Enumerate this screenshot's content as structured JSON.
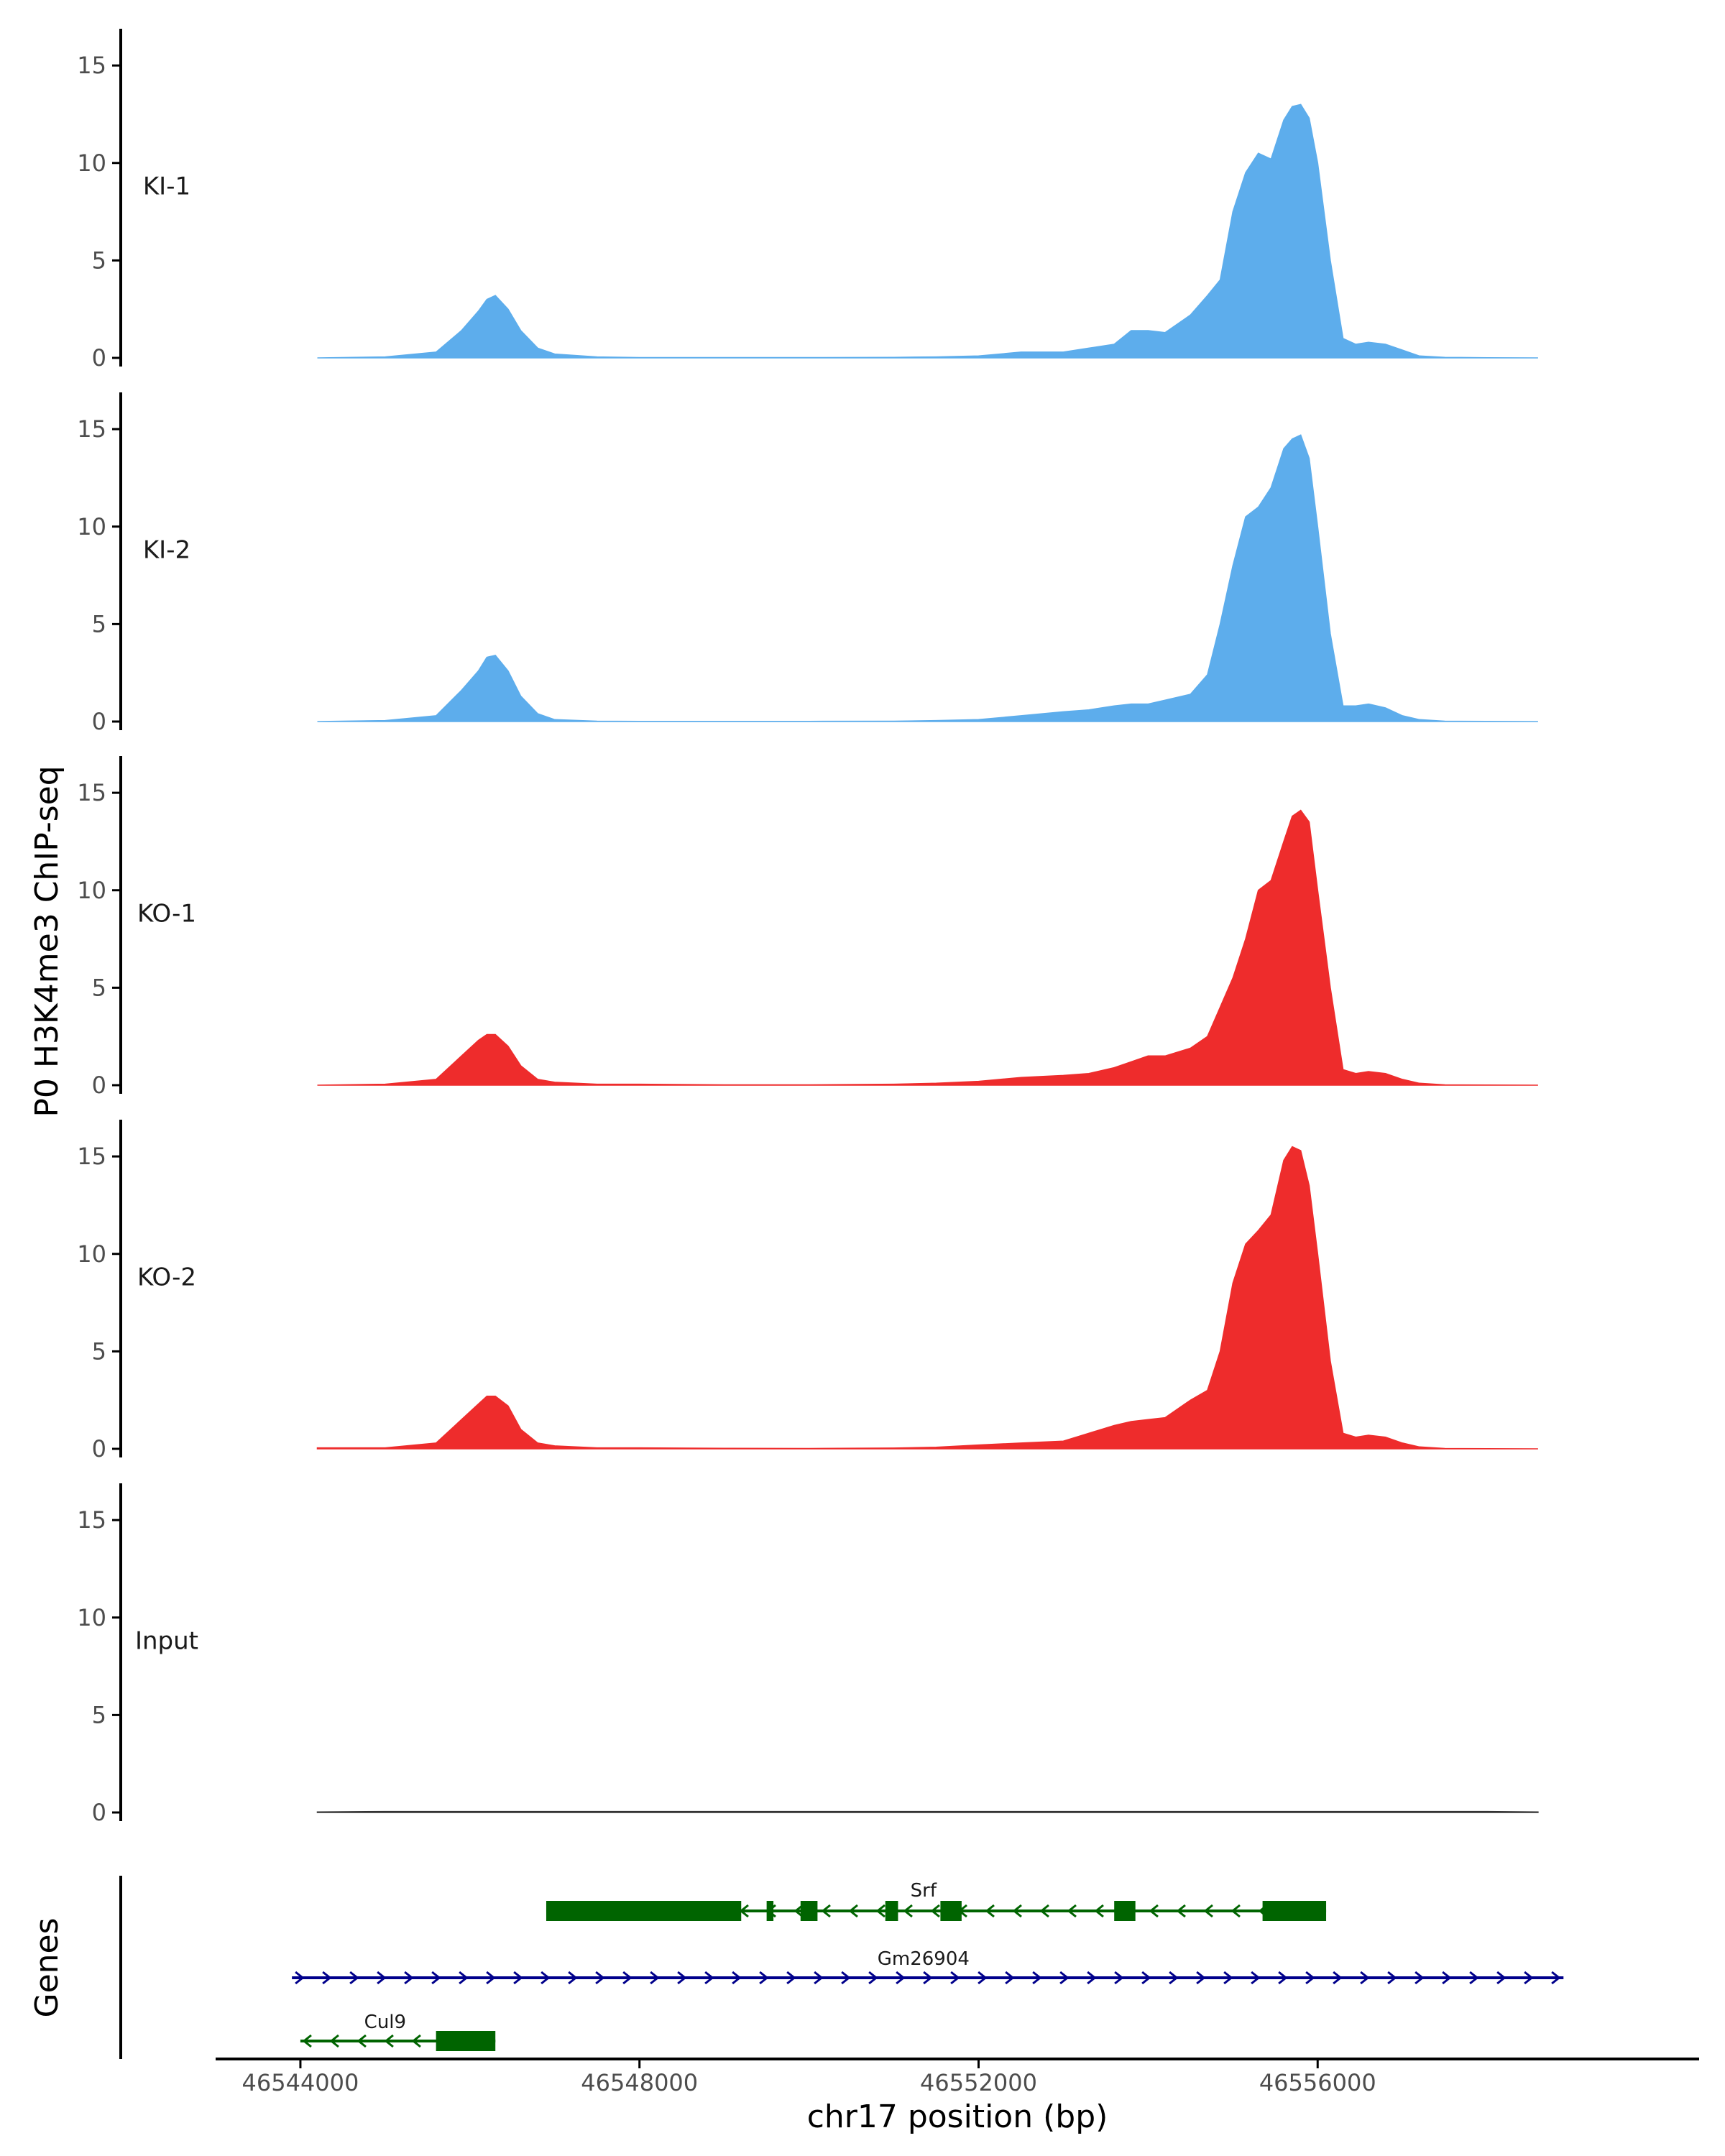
{
  "chart_data": {
    "type": "area",
    "ylabel": "P0 H3K4me3 ChIP-seq",
    "xlabel": "chr17 position (bp)",
    "xlim": [
      46543000,
      46560500
    ],
    "ylim": [
      0,
      16
    ],
    "y_ticks": [
      0,
      5,
      10,
      15
    ],
    "y_tick_labels": [
      "0",
      "5",
      "10",
      "15"
    ],
    "x_ticks": [
      46544000,
      46548000,
      46552000,
      46556000
    ],
    "x_tick_labels": [
      "46544000",
      "46548000",
      "46552000",
      "46556000"
    ],
    "genes_title": "Genes",
    "tracks": [
      {
        "name": "KI-1",
        "color": "#5DADEC",
        "x": [
          46544200,
          46545000,
          46545600,
          46545900,
          46546100,
          46546200,
          46546300,
          46546450,
          46546600,
          46546800,
          46547000,
          46547500,
          46548000,
          46549000,
          46550000,
          46551000,
          46551500,
          46552000,
          46552500,
          46553000,
          46553300,
          46553600,
          46553800,
          46554000,
          46554200,
          46554500,
          46554700,
          46554850,
          46555000,
          46555150,
          46555300,
          46555450,
          46555600,
          46555700,
          46555800,
          46555900,
          46556000,
          46556150,
          46556300,
          46556450,
          46556600,
          46556800,
          46557000,
          46557200,
          46557500,
          46558000,
          46558600
        ],
        "values": [
          0,
          0.05,
          0.3,
          1.4,
          2.4,
          3.0,
          3.2,
          2.5,
          1.4,
          0.5,
          0.2,
          0.05,
          0.02,
          0.02,
          0.02,
          0.03,
          0.05,
          0.1,
          0.3,
          0.3,
          0.5,
          0.7,
          1.4,
          1.4,
          1.3,
          2.2,
          3.2,
          4.0,
          7.5,
          9.5,
          10.5,
          10.2,
          12.2,
          12.9,
          13.0,
          12.3,
          10.0,
          5.0,
          1.0,
          0.7,
          0.8,
          0.7,
          0.4,
          0.1,
          0.03,
          0.01,
          0
        ]
      },
      {
        "name": "KI-2",
        "color": "#5DADEC",
        "x": [
          46544200,
          46545000,
          46545600,
          46545900,
          46546100,
          46546200,
          46546300,
          46546450,
          46546600,
          46546800,
          46547000,
          46547500,
          46548000,
          46549000,
          46550000,
          46551000,
          46551500,
          46552000,
          46552500,
          46553000,
          46553300,
          46553600,
          46553800,
          46554000,
          46554200,
          46554500,
          46554700,
          46554850,
          46555000,
          46555150,
          46555300,
          46555450,
          46555600,
          46555700,
          46555800,
          46555900,
          46556000,
          46556150,
          46556300,
          46556450,
          46556600,
          46556800,
          46557000,
          46557200,
          46557500,
          46558000,
          46558600
        ],
        "values": [
          0,
          0.05,
          0.3,
          1.6,
          2.6,
          3.3,
          3.4,
          2.6,
          1.3,
          0.4,
          0.1,
          0.02,
          0.01,
          0.01,
          0.01,
          0.02,
          0.05,
          0.1,
          0.3,
          0.5,
          0.6,
          0.8,
          0.9,
          0.9,
          1.1,
          1.4,
          2.4,
          5.0,
          8.0,
          10.5,
          11.0,
          12.0,
          14.0,
          14.5,
          14.7,
          13.5,
          10.0,
          4.5,
          0.8,
          0.8,
          0.9,
          0.7,
          0.3,
          0.1,
          0.02,
          0.01,
          0
        ]
      },
      {
        "name": "KO-1",
        "color": "#EE2C2C",
        "x": [
          46544200,
          46545000,
          46545600,
          46545900,
          46546100,
          46546200,
          46546300,
          46546450,
          46546600,
          46546800,
          46547000,
          46547500,
          46548000,
          46549000,
          46550000,
          46551000,
          46551500,
          46552000,
          46552500,
          46553000,
          46553300,
          46553600,
          46553800,
          46554000,
          46554200,
          46554500,
          46554700,
          46554850,
          46555000,
          46555150,
          46555300,
          46555450,
          46555600,
          46555700,
          46555800,
          46555900,
          46556000,
          46556150,
          46556300,
          46556450,
          46556600,
          46556800,
          46557000,
          46557200,
          46557500,
          46558000,
          46558600
        ],
        "values": [
          0,
          0.05,
          0.3,
          1.5,
          2.3,
          2.6,
          2.6,
          2.0,
          1.0,
          0.3,
          0.15,
          0.05,
          0.05,
          0.02,
          0.02,
          0.05,
          0.1,
          0.2,
          0.4,
          0.5,
          0.6,
          0.9,
          1.2,
          1.5,
          1.5,
          1.9,
          2.5,
          4.0,
          5.5,
          7.5,
          10.0,
          10.5,
          12.5,
          13.8,
          14.1,
          13.5,
          10.0,
          5.0,
          0.8,
          0.6,
          0.7,
          0.6,
          0.3,
          0.1,
          0.02,
          0.01,
          0
        ]
      },
      {
        "name": "KO-2",
        "color": "#EE2C2C",
        "x": [
          46544200,
          46545000,
          46545600,
          46545900,
          46546100,
          46546200,
          46546300,
          46546450,
          46546600,
          46546800,
          46547000,
          46547500,
          46548000,
          46549000,
          46550000,
          46551000,
          46551500,
          46552000,
          46552500,
          46553000,
          46553300,
          46553600,
          46553800,
          46554000,
          46554200,
          46554500,
          46554700,
          46554850,
          46555000,
          46555150,
          46555300,
          46555450,
          46555600,
          46555700,
          46555800,
          46555900,
          46556000,
          46556150,
          46556300,
          46556450,
          46556600,
          46556800,
          46557000,
          46557200,
          46557500,
          46558000,
          46558600
        ],
        "values": [
          0.05,
          0.05,
          0.3,
          1.5,
          2.3,
          2.7,
          2.7,
          2.2,
          1.0,
          0.3,
          0.15,
          0.05,
          0.05,
          0.03,
          0.02,
          0.04,
          0.08,
          0.2,
          0.3,
          0.4,
          0.8,
          1.2,
          1.4,
          1.5,
          1.6,
          2.5,
          3.0,
          5.0,
          8.5,
          10.5,
          11.2,
          12.0,
          14.8,
          15.5,
          15.3,
          13.5,
          10.0,
          4.5,
          0.8,
          0.6,
          0.7,
          0.6,
          0.3,
          0.1,
          0.02,
          0.01,
          0
        ]
      },
      {
        "name": "Input",
        "color": "#333333",
        "x": [
          46544200,
          46545000,
          46546000,
          46547000,
          46548000,
          46549000,
          46550000,
          46551000,
          46552000,
          46553000,
          46554000,
          46555000,
          46556000,
          46557000,
          46558000,
          46558600
        ],
        "values": [
          0.03,
          0.05,
          0.05,
          0.05,
          0.05,
          0.05,
          0.05,
          0.05,
          0.05,
          0.05,
          0.05,
          0.05,
          0.05,
          0.05,
          0.05,
          0.03
        ]
      }
    ],
    "genes": [
      {
        "name": "Srf",
        "strand": "-",
        "color": "#006400",
        "start": 46546900,
        "end": 46556100,
        "exons": [
          [
            46546900,
            46549200
          ],
          [
            46549500,
            46549580
          ],
          [
            46549900,
            46550100
          ],
          [
            46550900,
            46551050
          ],
          [
            46551550,
            46551800
          ],
          [
            46553600,
            46553850
          ],
          [
            46555350,
            46556100
          ]
        ]
      },
      {
        "name": "Gm26904",
        "strand": "+",
        "color": "#00008B",
        "start": 46543900,
        "end": 46558900,
        "exons": []
      },
      {
        "name": "Cul9",
        "strand": "-",
        "color": "#006400",
        "start": 46544000,
        "end": 46546300,
        "exons": [
          [
            46545600,
            46546300
          ]
        ]
      }
    ]
  }
}
